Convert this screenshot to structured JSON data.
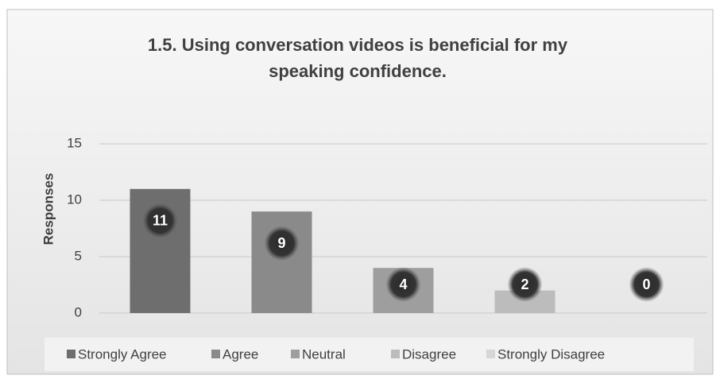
{
  "chart_data": {
    "type": "bar",
    "title": "1.5. Using conversation videos is beneficial for my speaking confidence.",
    "ylabel": "Responses",
    "ylim": [
      0,
      15
    ],
    "yticks": [
      0,
      5,
      10,
      15
    ],
    "grid": true,
    "legend": "bottom",
    "series": [
      {
        "name": "Strongly Agree",
        "color": "#6e6e6e",
        "values": [
          11
        ]
      },
      {
        "name": "Agree",
        "color": "#8a8a8a",
        "values": [
          9
        ]
      },
      {
        "name": "Neutral",
        "color": "#9e9e9e",
        "values": [
          4
        ]
      },
      {
        "name": "Disagree",
        "color": "#bcbcbc",
        "values": [
          2
        ]
      },
      {
        "name": "Strongly Disagree",
        "color": "#d6d6d6",
        "values": [
          0
        ]
      }
    ]
  }
}
